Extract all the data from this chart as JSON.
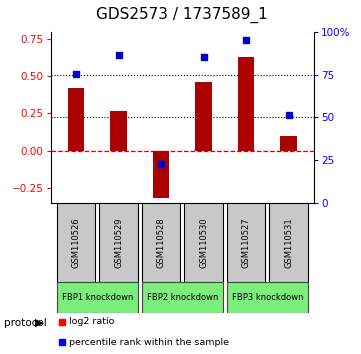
{
  "title": "GDS2573 / 1737589_1",
  "samples": [
    "GSM110526",
    "GSM110529",
    "GSM110528",
    "GSM110530",
    "GSM110527",
    "GSM110531"
  ],
  "log2_ratio": [
    0.42,
    0.27,
    -0.32,
    0.46,
    0.63,
    0.1
  ],
  "percentile_rank": [
    75.5,
    86.5,
    22.5,
    85.0,
    95.0,
    51.5
  ],
  "ylim_left": [
    -0.35,
    0.8
  ],
  "ylim_right": [
    0,
    100
  ],
  "yticks_left": [
    -0.25,
    0.0,
    0.25,
    0.5,
    0.75
  ],
  "yticks_right": [
    0,
    25,
    50,
    75,
    100
  ],
  "bar_color": "#AA0000",
  "dot_color": "#0000CC",
  "zero_line_color": "#DD0000",
  "dotted_line_color": "black",
  "title_fontsize": 11,
  "tick_fontsize": 7.5,
  "groups": [
    {
      "label": "FBP1 knockdown",
      "start": 0,
      "end": 1
    },
    {
      "label": "FBP2 knockdown",
      "start": 2,
      "end": 3
    },
    {
      "label": "FBP3 knockdown",
      "start": 4,
      "end": 5
    }
  ],
  "group_color": "#7BEE7B",
  "sample_box_color": "#C8C8C8"
}
